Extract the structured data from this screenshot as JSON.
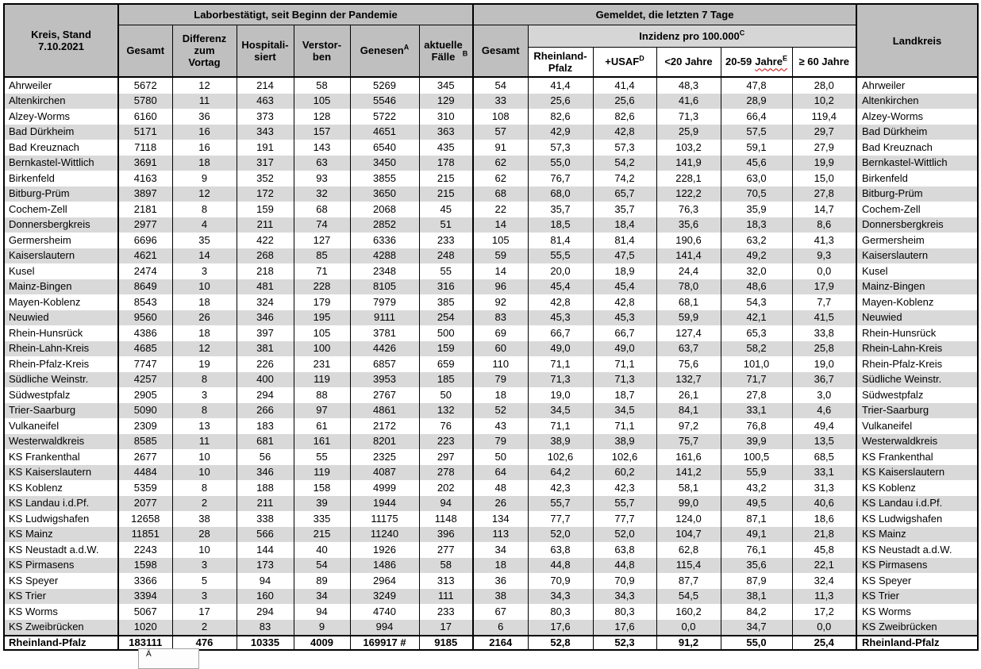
{
  "headers": {
    "corner": "Kreis, Stand\n7.10.2021",
    "group_labor": "Laborbestätigt, seit Beginn der Pandemie",
    "group_gemeldet": "Gemeldet, die letzten 7 Tage",
    "gesamt": "Gesamt",
    "differenz": "Differenz\nzum\nVortag",
    "hospitalisiert": "Hospitali-\nsiert",
    "verstorben": "Verstor-\nben",
    "genesen": {
      "text": "Genesen",
      "sup": "A"
    },
    "aktuelle_faelle": {
      "text": "aktuelle\nFälle",
      "sup": "B"
    },
    "gesamt_7tage": "Gesamt",
    "inzidenz": {
      "text": "Inzidenz pro 100.000",
      "sup": "C"
    },
    "rheinland_pfalz": "Rheinland-\nPfalz",
    "usaf": {
      "text": "+USAF",
      "sup": "D"
    },
    "unter20": "<20 Jahre",
    "jahre_20_59": {
      "text": "20-59",
      "squiggle": "Jahre",
      "sup": "E"
    },
    "ab60": "≥ 60 Jahre",
    "landkreis": "Landkreis"
  },
  "rows": [
    {
      "name": "Ahrweiler",
      "values": [
        "5672",
        "12",
        "214",
        "58",
        "5269",
        "345",
        "54",
        "41,4",
        "41,4",
        "48,3",
        "47,8",
        "28,0"
      ]
    },
    {
      "name": "Altenkirchen",
      "values": [
        "5780",
        "11",
        "463",
        "105",
        "5546",
        "129",
        "33",
        "25,6",
        "25,6",
        "41,6",
        "28,9",
        "10,2"
      ]
    },
    {
      "name": "Alzey-Worms",
      "values": [
        "6160",
        "36",
        "373",
        "128",
        "5722",
        "310",
        "108",
        "82,6",
        "82,6",
        "71,3",
        "66,4",
        "119,4"
      ]
    },
    {
      "name": "Bad Dürkheim",
      "values": [
        "5171",
        "16",
        "343",
        "157",
        "4651",
        "363",
        "57",
        "42,9",
        "42,8",
        "25,9",
        "57,5",
        "29,7"
      ]
    },
    {
      "name": "Bad Kreuznach",
      "values": [
        "7118",
        "16",
        "191",
        "143",
        "6540",
        "435",
        "91",
        "57,3",
        "57,3",
        "103,2",
        "59,1",
        "27,9"
      ]
    },
    {
      "name": "Bernkastel-Wittlich",
      "values": [
        "3691",
        "18",
        "317",
        "63",
        "3450",
        "178",
        "62",
        "55,0",
        "54,2",
        "141,9",
        "45,6",
        "19,9"
      ]
    },
    {
      "name": "Birkenfeld",
      "values": [
        "4163",
        "9",
        "352",
        "93",
        "3855",
        "215",
        "62",
        "76,7",
        "74,2",
        "228,1",
        "63,0",
        "15,0"
      ]
    },
    {
      "name": "Bitburg-Prüm",
      "values": [
        "3897",
        "12",
        "172",
        "32",
        "3650",
        "215",
        "68",
        "68,0",
        "65,7",
        "122,2",
        "70,5",
        "27,8"
      ]
    },
    {
      "name": "Cochem-Zell",
      "values": [
        "2181",
        "8",
        "159",
        "68",
        "2068",
        "45",
        "22",
        "35,7",
        "35,7",
        "76,3",
        "35,9",
        "14,7"
      ]
    },
    {
      "name": "Donnersbergkreis",
      "values": [
        "2977",
        "4",
        "211",
        "74",
        "2852",
        "51",
        "14",
        "18,5",
        "18,4",
        "35,6",
        "18,3",
        "8,6"
      ]
    },
    {
      "name": "Germersheim",
      "values": [
        "6696",
        "35",
        "422",
        "127",
        "6336",
        "233",
        "105",
        "81,4",
        "81,4",
        "190,6",
        "63,2",
        "41,3"
      ]
    },
    {
      "name": "Kaiserslautern",
      "values": [
        "4621",
        "14",
        "268",
        "85",
        "4288",
        "248",
        "59",
        "55,5",
        "47,5",
        "141,4",
        "49,2",
        "9,3"
      ]
    },
    {
      "name": "Kusel",
      "values": [
        "2474",
        "3",
        "218",
        "71",
        "2348",
        "55",
        "14",
        "20,0",
        "18,9",
        "24,4",
        "32,0",
        "0,0"
      ]
    },
    {
      "name": "Mainz-Bingen",
      "values": [
        "8649",
        "10",
        "481",
        "228",
        "8105",
        "316",
        "96",
        "45,4",
        "45,4",
        "78,0",
        "48,6",
        "17,9"
      ]
    },
    {
      "name": "Mayen-Koblenz",
      "values": [
        "8543",
        "18",
        "324",
        "179",
        "7979",
        "385",
        "92",
        "42,8",
        "42,8",
        "68,1",
        "54,3",
        "7,7"
      ]
    },
    {
      "name": "Neuwied",
      "values": [
        "9560",
        "26",
        "346",
        "195",
        "9111",
        "254",
        "83",
        "45,3",
        "45,3",
        "59,9",
        "42,1",
        "41,5"
      ]
    },
    {
      "name": "Rhein-Hunsrück",
      "values": [
        "4386",
        "18",
        "397",
        "105",
        "3781",
        "500",
        "69",
        "66,7",
        "66,7",
        "127,4",
        "65,3",
        "33,8"
      ]
    },
    {
      "name": "Rhein-Lahn-Kreis",
      "values": [
        "4685",
        "12",
        "381",
        "100",
        "4426",
        "159",
        "60",
        "49,0",
        "49,0",
        "63,7",
        "58,2",
        "25,8"
      ]
    },
    {
      "name": "Rhein-Pfalz-Kreis",
      "values": [
        "7747",
        "19",
        "226",
        "231",
        "6857",
        "659",
        "110",
        "71,1",
        "71,1",
        "75,6",
        "101,0",
        "19,0"
      ]
    },
    {
      "name": "Südliche Weinstr.",
      "values": [
        "4257",
        "8",
        "400",
        "119",
        "3953",
        "185",
        "79",
        "71,3",
        "71,3",
        "132,7",
        "71,7",
        "36,7"
      ]
    },
    {
      "name": "Südwestpfalz",
      "values": [
        "2905",
        "3",
        "294",
        "88",
        "2767",
        "50",
        "18",
        "19,0",
        "18,7",
        "26,1",
        "27,8",
        "3,0"
      ]
    },
    {
      "name": "Trier-Saarburg",
      "values": [
        "5090",
        "8",
        "266",
        "97",
        "4861",
        "132",
        "52",
        "34,5",
        "34,5",
        "84,1",
        "33,1",
        "4,6"
      ]
    },
    {
      "name": "Vulkaneifel",
      "values": [
        "2309",
        "13",
        "183",
        "61",
        "2172",
        "76",
        "43",
        "71,1",
        "71,1",
        "97,2",
        "76,8",
        "49,4"
      ]
    },
    {
      "name": "Westerwaldkreis",
      "values": [
        "8585",
        "11",
        "681",
        "161",
        "8201",
        "223",
        "79",
        "38,9",
        "38,9",
        "75,7",
        "39,9",
        "13,5"
      ]
    },
    {
      "name": "KS Frankenthal",
      "values": [
        "2677",
        "10",
        "56",
        "55",
        "2325",
        "297",
        "50",
        "102,6",
        "102,6",
        "161,6",
        "100,5",
        "68,5"
      ]
    },
    {
      "name": "KS Kaiserslautern",
      "values": [
        "4484",
        "10",
        "346",
        "119",
        "4087",
        "278",
        "64",
        "64,2",
        "60,2",
        "141,2",
        "55,9",
        "33,1"
      ]
    },
    {
      "name": "KS Koblenz",
      "values": [
        "5359",
        "8",
        "188",
        "158",
        "4999",
        "202",
        "48",
        "42,3",
        "42,3",
        "58,1",
        "43,2",
        "31,3"
      ]
    },
    {
      "name": "KS Landau i.d.Pf.",
      "values": [
        "2077",
        "2",
        "211",
        "39",
        "1944",
        "94",
        "26",
        "55,7",
        "55,7",
        "99,0",
        "49,5",
        "40,6"
      ]
    },
    {
      "name": "KS Ludwigshafen",
      "values": [
        "12658",
        "38",
        "338",
        "335",
        "11175",
        "1148",
        "134",
        "77,7",
        "77,7",
        "124,0",
        "87,1",
        "18,6"
      ]
    },
    {
      "name": "KS Mainz",
      "values": [
        "11851",
        "28",
        "566",
        "215",
        "11240",
        "396",
        "113",
        "52,0",
        "52,0",
        "104,7",
        "49,1",
        "21,8"
      ]
    },
    {
      "name": "KS Neustadt a.d.W.",
      "values": [
        "2243",
        "10",
        "144",
        "40",
        "1926",
        "277",
        "34",
        "63,8",
        "63,8",
        "62,8",
        "76,1",
        "45,8"
      ]
    },
    {
      "name": "KS Pirmasens",
      "values": [
        "1598",
        "3",
        "173",
        "54",
        "1486",
        "58",
        "18",
        "44,8",
        "44,8",
        "115,4",
        "35,6",
        "22,1"
      ]
    },
    {
      "name": "KS Speyer",
      "values": [
        "3366",
        "5",
        "94",
        "89",
        "2964",
        "313",
        "36",
        "70,9",
        "70,9",
        "87,7",
        "87,9",
        "32,4"
      ]
    },
    {
      "name": "KS Trier",
      "values": [
        "3394",
        "3",
        "160",
        "34",
        "3249",
        "111",
        "38",
        "34,3",
        "34,3",
        "54,5",
        "38,1",
        "11,3"
      ]
    },
    {
      "name": "KS Worms",
      "values": [
        "5067",
        "17",
        "294",
        "94",
        "4740",
        "233",
        "67",
        "80,3",
        "80,3",
        "160,2",
        "84,2",
        "17,2"
      ]
    },
    {
      "name": "KS Zweibrücken",
      "values": [
        "1020",
        "2",
        "83",
        "9",
        "994",
        "17",
        "6",
        "17,6",
        "17,6",
        "0,0",
        "34,7",
        "0,0"
      ]
    }
  ],
  "total": {
    "name": "Rheinland-Pfalz",
    "values": [
      "183111",
      "476",
      "10335",
      "4009",
      "169917 #",
      "9185",
      "2164",
      "52,8",
      "52,3",
      "91,2",
      "55,0",
      "25,4"
    ]
  },
  "popup": {
    "text": "Ä"
  },
  "colors": {
    "header_gray": "#bfbfbf",
    "inzidenz_gray": "#d6d6d6",
    "stripe_gray": "#d9d9d9",
    "squiggle_red": "#cc0000"
  }
}
